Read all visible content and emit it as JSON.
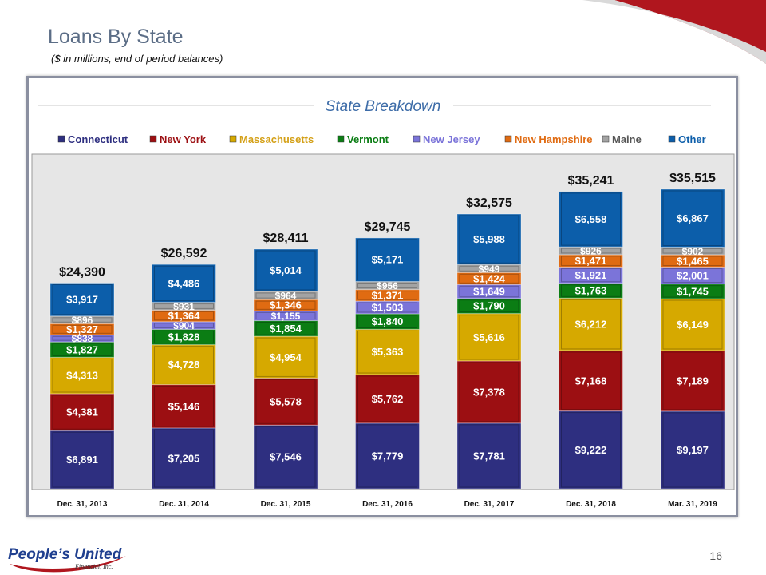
{
  "header": {
    "title": "Loans By State",
    "subtitle": "($ in millions, end of period balances)",
    "page_number": "16"
  },
  "logo": {
    "text": "People's United",
    "subtext": "Financial, Inc."
  },
  "chart_data": {
    "type": "bar",
    "stacked": true,
    "title": "State Breakdown",
    "categories": [
      "Dec. 31, 2013",
      "Dec. 31, 2014",
      "Dec. 31, 2015",
      "Dec. 31, 2016",
      "Dec. 31, 2017",
      "Dec. 31, 2018",
      "Mar. 31, 2019"
    ],
    "totals": [
      24390,
      26592,
      28411,
      29745,
      32575,
      35241,
      35515
    ],
    "total_labels": [
      "$24,390",
      "$26,592",
      "$28,411",
      "$29,745",
      "$32,575",
      "$35,241",
      "$35,515"
    ],
    "legend_position": "top",
    "grid": false,
    "series": [
      {
        "name": "Connecticut",
        "color": "#2e2f80",
        "values": [
          6891,
          7205,
          7546,
          7779,
          7781,
          9222,
          9197
        ]
      },
      {
        "name": "New York",
        "color": "#9c0f12",
        "values": [
          4381,
          5146,
          5578,
          5762,
          7378,
          7168,
          7189
        ]
      },
      {
        "name": "Massachusetts",
        "color": "#d6a900",
        "text_color": "#d4a017",
        "values": [
          4313,
          4728,
          4954,
          5363,
          5616,
          6212,
          6149
        ]
      },
      {
        "name": "Vermont",
        "color": "#0b7d14",
        "values": [
          1827,
          1828,
          1854,
          1840,
          1790,
          1763,
          1745
        ]
      },
      {
        "name": "New Jersey",
        "color": "#7b74d9",
        "values": [
          838,
          904,
          1155,
          1503,
          1649,
          1921,
          2001
        ]
      },
      {
        "name": "New Hampshire",
        "color": "#e06b12",
        "values": [
          1327,
          1364,
          1346,
          1371,
          1424,
          1471,
          1465
        ]
      },
      {
        "name": "Maine",
        "color": "#a3a3a3",
        "text_color": "#555555",
        "values": [
          896,
          931,
          964,
          956,
          949,
          926,
          902
        ]
      },
      {
        "name": "Other",
        "color": "#0c5eaa",
        "values": [
          3917,
          4486,
          5014,
          5171,
          5988,
          6558,
          6867
        ]
      }
    ]
  }
}
